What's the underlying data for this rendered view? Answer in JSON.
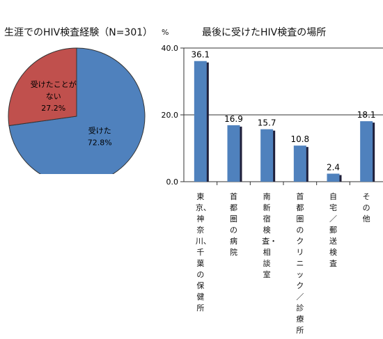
{
  "chart_data": [
    {
      "type": "pie",
      "title": "生涯でのHIV検査経験（N=301）",
      "slices": [
        {
          "label": "受けた",
          "value": 72.8,
          "value_label": "72.8%",
          "color": "#4f81bd"
        },
        {
          "label": "受けたことがない",
          "label_lines": [
            "受けたことが",
            "ない"
          ],
          "value": 27.2,
          "value_label": "27.2%",
          "color": "#c0504d"
        }
      ]
    },
    {
      "type": "bar",
      "title": "最後に受けたHIV検査の場所",
      "unit": "%",
      "categories": [
        "東京、神奈川、千葉の保健所",
        "首都圏の病院",
        "南新宿検査・相談室",
        "首都圏のクリニック／診療所",
        "自宅／郵送検査",
        "その他"
      ],
      "values": [
        36.1,
        16.9,
        15.7,
        10.8,
        2.4,
        18.1
      ],
      "value_labels": [
        "36.1",
        "16.9",
        "15.7",
        "10.8",
        "2.4",
        "18.1"
      ],
      "yticks": [
        "0.0",
        "20.0",
        "40.0"
      ],
      "ylim": [
        0,
        40
      ],
      "bar_color": "#4f81bd",
      "shadow_color": "#1f1f3a",
      "grid": true
    }
  ]
}
